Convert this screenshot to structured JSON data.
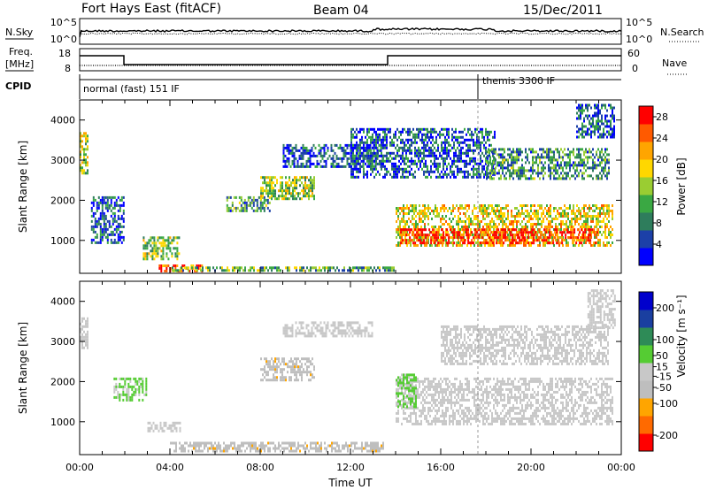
{
  "header": {
    "radar": "Fort Hays East (fitACF)",
    "beam": "Beam 04",
    "date": "15/Dec/2011"
  },
  "noise_panel": {
    "left_label": "N.Sky",
    "left_ticks": [
      "10^5",
      "10^0"
    ],
    "right_ticks": [
      "10^5",
      "10^0"
    ],
    "right_label": "N.Search"
  },
  "freq_panel": {
    "left_label_1": "Freq.",
    "left_label_2": "[MHz]",
    "left_ticks": [
      "18",
      "8"
    ],
    "right_ticks": [
      "60",
      "0"
    ],
    "right_label": "Nave"
  },
  "cpid_panel": {
    "label": "CPID",
    "mode_1": "normal (fast) 151 IF",
    "mode_2": "themis 3300 IF"
  },
  "colors": {
    "power": [
      "#0000ff",
      "#1c40a8",
      "#2e7d5c",
      "#3aa843",
      "#9acd32",
      "#ffd700",
      "#ffa500",
      "#ff5a00",
      "#ff0000"
    ],
    "velocity": [
      "#ff0000",
      "#ff6a00",
      "#ffa500",
      "#bebebe",
      "#c8c8c8",
      "#55cc33",
      "#2e8b57",
      "#1a3fa0",
      "#0000cc"
    ]
  },
  "chart_data": [
    {
      "type": "heatmap",
      "name": "power",
      "xlabel": "",
      "ylabel": "Slant Range [km]",
      "xlim": [
        0,
        24
      ],
      "ylim": [
        180,
        4500
      ],
      "yticks": [
        "1000",
        "2000",
        "3000",
        "4000"
      ],
      "colorbar_label": "Power [dB]",
      "colorbar_ticks": [
        "4",
        "8",
        "12",
        "16",
        "20",
        "24",
        "28"
      ],
      "colorbar_range": [
        0,
        30
      ],
      "regions": [
        {
          "t0": 0.0,
          "t1": 0.4,
          "r0": 2600,
          "r1": 3700,
          "v": 16
        },
        {
          "t0": 0.5,
          "t1": 2.0,
          "r0": 900,
          "r1": 2100,
          "v": 6
        },
        {
          "t0": 2.8,
          "t1": 4.5,
          "r0": 500,
          "r1": 1100,
          "v": 14
        },
        {
          "t0": 3.5,
          "t1": 5.5,
          "r0": 180,
          "r1": 400,
          "v": 24
        },
        {
          "t0": 4.0,
          "t1": 14.0,
          "r0": 180,
          "r1": 350,
          "v": 12
        },
        {
          "t0": 6.5,
          "t1": 8.5,
          "r0": 1700,
          "r1": 2100,
          "v": 10
        },
        {
          "t0": 8.0,
          "t1": 10.5,
          "r0": 2000,
          "r1": 2600,
          "v": 14
        },
        {
          "t0": 9.0,
          "t1": 13.5,
          "r0": 2800,
          "r1": 3400,
          "v": 6
        },
        {
          "t0": 12.0,
          "t1": 18.5,
          "r0": 2500,
          "r1": 3800,
          "v": 6
        },
        {
          "t0": 14.0,
          "t1": 23.7,
          "r0": 800,
          "r1": 1900,
          "v": 18
        },
        {
          "t0": 14.2,
          "t1": 23.0,
          "r0": 850,
          "r1": 1300,
          "v": 28
        },
        {
          "t0": 18.0,
          "t1": 23.5,
          "r0": 2500,
          "r1": 3300,
          "v": 10
        },
        {
          "t0": 22.0,
          "t1": 23.8,
          "r0": 3500,
          "r1": 4400,
          "v": 6
        }
      ]
    },
    {
      "type": "heatmap",
      "name": "velocity",
      "xlabel": "Time UT",
      "ylabel": "Slant Range [km]",
      "xlim": [
        0,
        24
      ],
      "ylim": [
        180,
        4500
      ],
      "xticks": [
        "00:00",
        "04:00",
        "08:00",
        "12:00",
        "16:00",
        "20:00",
        "00:00"
      ],
      "yticks": [
        "1000",
        "2000",
        "3000",
        "4000"
      ],
      "colorbar_label": "Velocity [m s⁻¹]",
      "colorbar_ticks": [
        "-200",
        "-100",
        "-50",
        "-15",
        "15",
        "50",
        "100",
        "200"
      ],
      "colorbar_range": [
        -250,
        250
      ],
      "regions": [
        {
          "t0": 0.0,
          "t1": 0.4,
          "r0": 2800,
          "r1": 3600,
          "v": 0
        },
        {
          "t0": 1.5,
          "t1": 3.0,
          "r0": 1500,
          "r1": 2100,
          "v": 40
        },
        {
          "t0": 3.0,
          "t1": 4.5,
          "r0": 700,
          "r1": 1000,
          "v": 0
        },
        {
          "t0": 4.0,
          "t1": 13.5,
          "r0": 180,
          "r1": 500,
          "v": -60
        },
        {
          "t0": 8.0,
          "t1": 10.5,
          "r0": 2000,
          "r1": 2600,
          "v": -60
        },
        {
          "t0": 9.0,
          "t1": 13.0,
          "r0": 3100,
          "r1": 3500,
          "v": 0
        },
        {
          "t0": 14.0,
          "t1": 23.7,
          "r0": 900,
          "r1": 2100,
          "v": 0
        },
        {
          "t0": 14.0,
          "t1": 15.0,
          "r0": 1300,
          "r1": 2200,
          "v": 40
        },
        {
          "t0": 16.0,
          "t1": 23.5,
          "r0": 2400,
          "r1": 3400,
          "v": 0
        },
        {
          "t0": 22.5,
          "t1": 23.8,
          "r0": 3300,
          "r1": 4300,
          "v": 0
        }
      ]
    }
  ]
}
